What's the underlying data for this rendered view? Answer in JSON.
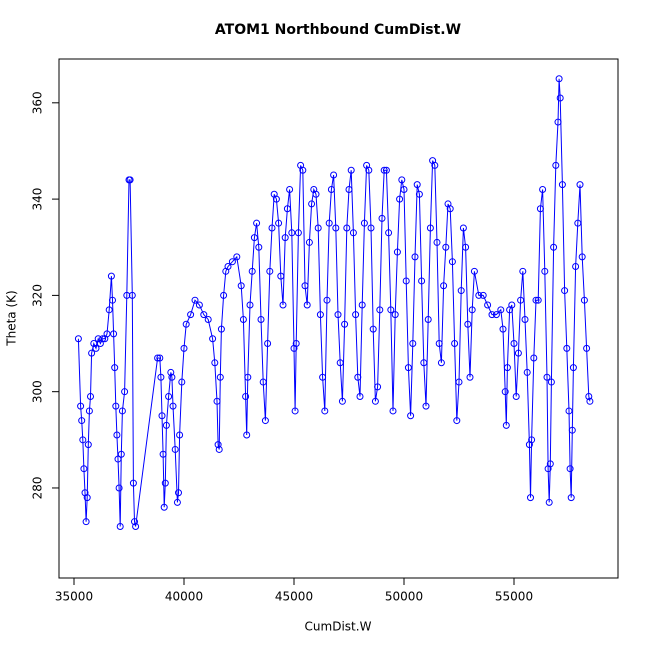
{
  "chart_data": {
    "type": "line",
    "title": "ATOM1 Northbound CumDist.W",
    "x_label": "CumDist.W",
    "y_label": "Theta (K)",
    "color": "#0000ff",
    "markers": true,
    "xlim": [
      34318,
      59727
    ],
    "ylim": [
      261.3,
      369.1
    ],
    "xticks": [
      35000,
      40000,
      45000,
      50000,
      55000
    ],
    "yticks": [
      280,
      300,
      320,
      340,
      360
    ],
    "x": [
      35200,
      35300,
      35350,
      35400,
      35450,
      35500,
      35550,
      35600,
      35650,
      35700,
      35750,
      35800,
      35900,
      36000,
      36100,
      36200,
      36300,
      36400,
      36500,
      36600,
      36700,
      36750,
      36800,
      36850,
      36900,
      36950,
      37000,
      37050,
      37100,
      37150,
      37200,
      37300,
      37400,
      37500,
      37550,
      37650,
      37700,
      37750,
      37800,
      38800,
      38900,
      38950,
      39000,
      39050,
      39100,
      39150,
      39200,
      39300,
      39400,
      39450,
      39500,
      39600,
      39700,
      39750,
      39800,
      39900,
      40000,
      40100,
      40300,
      40500,
      40700,
      40900,
      41100,
      41300,
      41400,
      41500,
      41550,
      41600,
      41650,
      41700,
      41800,
      41900,
      42000,
      42200,
      42400,
      42600,
      42700,
      42800,
      42850,
      42900,
      43000,
      43100,
      43200,
      43300,
      43400,
      43500,
      43600,
      43700,
      43800,
      43900,
      44000,
      44100,
      44200,
      44300,
      44400,
      44500,
      44600,
      44700,
      44800,
      44900,
      45000,
      45050,
      45100,
      45200,
      45300,
      45400,
      45500,
      45600,
      45700,
      45800,
      45900,
      46000,
      46100,
      46200,
      46300,
      46400,
      46500,
      46600,
      46700,
      46800,
      46900,
      47000,
      47100,
      47200,
      47300,
      47400,
      47500,
      47600,
      47700,
      47800,
      47900,
      48000,
      48100,
      48200,
      48300,
      48400,
      48500,
      48600,
      48700,
      48800,
      48900,
      49000,
      49100,
      49200,
      49300,
      49400,
      49500,
      49600,
      49700,
      49800,
      49900,
      50000,
      50100,
      50200,
      50300,
      50400,
      50500,
      50600,
      50700,
      50800,
      50900,
      51000,
      51100,
      51200,
      51300,
      51400,
      51500,
      51600,
      51700,
      51800,
      51900,
      52000,
      52100,
      52200,
      52300,
      52400,
      52500,
      52600,
      52700,
      52800,
      52900,
      53000,
      53100,
      53200,
      53400,
      53600,
      53800,
      54000,
      54200,
      54400,
      54500,
      54600,
      54650,
      54700,
      54800,
      54900,
      55000,
      55100,
      55200,
      55300,
      55400,
      55500,
      55600,
      55700,
      55750,
      55800,
      55900,
      56000,
      56100,
      56200,
      56300,
      56400,
      56500,
      56550,
      56600,
      56650,
      56700,
      56800,
      56900,
      57000,
      57050,
      57100,
      57200,
      57300,
      57400,
      57500,
      57550,
      57600,
      57650,
      57700,
      57800,
      57900,
      58000,
      58100,
      58200,
      58300,
      58400,
      58450
    ],
    "values": [
      311,
      297,
      294,
      290,
      284,
      279,
      273,
      278,
      289,
      296,
      299,
      308,
      310,
      309,
      311,
      310,
      311,
      311,
      312,
      317,
      324,
      319,
      312,
      305,
      297,
      291,
      286,
      280,
      272,
      287,
      296,
      300,
      320,
      344,
      344,
      320,
      281,
      273,
      272,
      307,
      307,
      303,
      295,
      287,
      276,
      281,
      293,
      299,
      304,
      303,
      297,
      288,
      277,
      279,
      291,
      302,
      309,
      314,
      316,
      319,
      318,
      316,
      315,
      311,
      306,
      298,
      289,
      288,
      303,
      313,
      320,
      325,
      326,
      327,
      328,
      322,
      315,
      299,
      291,
      303,
      318,
      325,
      332,
      335,
      330,
      315,
      302,
      294,
      310,
      325,
      334,
      341,
      340,
      335,
      324,
      318,
      332,
      338,
      342,
      333,
      309,
      296,
      310,
      333,
      347,
      346,
      322,
      318,
      331,
      339,
      342,
      341,
      334,
      316,
      303,
      296,
      319,
      335,
      342,
      345,
      334,
      316,
      306,
      298,
      314,
      334,
      342,
      346,
      333,
      316,
      303,
      299,
      318,
      335,
      347,
      346,
      334,
      313,
      298,
      301,
      317,
      336,
      346,
      346,
      333,
      317,
      296,
      316,
      329,
      340,
      344,
      342,
      323,
      305,
      295,
      310,
      328,
      343,
      341,
      323,
      306,
      297,
      315,
      334,
      348,
      347,
      331,
      310,
      306,
      322,
      330,
      339,
      338,
      327,
      310,
      294,
      302,
      321,
      334,
      330,
      314,
      303,
      317,
      325,
      320,
      320,
      318,
      316,
      316,
      317,
      313,
      300,
      293,
      305,
      317,
      318,
      310,
      299,
      308,
      319,
      325,
      315,
      304,
      289,
      278,
      290,
      307,
      319,
      319,
      338,
      342,
      325,
      303,
      284,
      277,
      285,
      302,
      330,
      347,
      356,
      365,
      361,
      343,
      321,
      309,
      296,
      284,
      278,
      292,
      305,
      326,
      335,
      343,
      328,
      319,
      309,
      299,
      298
    ]
  }
}
